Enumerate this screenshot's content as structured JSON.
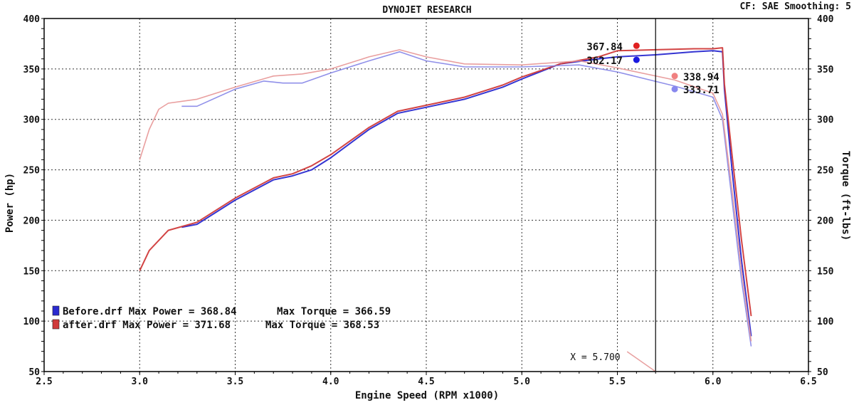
{
  "header": {
    "title": "DYNOJET RESEARCH",
    "cf_text": "CF: SAE  Smoothing: 5"
  },
  "chart_data": {
    "type": "line",
    "title": "DYNOJET RESEARCH",
    "xlabel": "Engine Speed (RPM x1000)",
    "ylabel": "Power (hp)",
    "y2label": "Torque (ft-lbs)",
    "xlim": [
      2.5,
      6.5
    ],
    "ylim": [
      50,
      400
    ],
    "y2lim": [
      50,
      400
    ],
    "x_ticks": [
      "2.5",
      "3.0",
      "3.5",
      "4.0",
      "4.5",
      "5.0",
      "5.5",
      "6.0",
      "6.5"
    ],
    "y_ticks": [
      "50",
      "100",
      "150",
      "200",
      "250",
      "300",
      "350",
      "400"
    ],
    "y2_ticks": [
      "50",
      "100",
      "150",
      "200",
      "250",
      "300",
      "350",
      "400"
    ],
    "grid": true,
    "grid_style": "dotted",
    "cursor": {
      "x": 5.7,
      "label": "X = 5.700"
    },
    "series": [
      {
        "name": "Before.drf",
        "kind": "power",
        "color": "#2a2ad0",
        "x": [
          3.22,
          3.3,
          3.5,
          3.7,
          3.8,
          3.9,
          4.0,
          4.2,
          4.35,
          4.5,
          4.7,
          4.9,
          5.0,
          5.2,
          5.4,
          5.5,
          5.7,
          5.9,
          6.0,
          6.05,
          6.06,
          6.1,
          6.15,
          6.2
        ],
        "y": [
          193,
          196,
          220,
          240,
          244,
          250,
          262,
          290,
          306,
          312,
          320,
          332,
          340,
          355,
          360,
          362,
          364,
          367,
          368,
          367,
          330,
          250,
          160,
          85
        ]
      },
      {
        "name": "after.drf",
        "kind": "power",
        "color": "#d03a3a",
        "x": [
          3.0,
          3.05,
          3.15,
          3.3,
          3.5,
          3.7,
          3.8,
          3.9,
          4.0,
          4.2,
          4.35,
          4.5,
          4.7,
          4.9,
          5.0,
          5.2,
          5.4,
          5.5,
          5.7,
          5.9,
          6.0,
          6.05,
          6.06,
          6.1,
          6.15,
          6.2
        ],
        "y": [
          150,
          170,
          190,
          198,
          222,
          242,
          246,
          254,
          265,
          292,
          308,
          314,
          322,
          334,
          342,
          355,
          362,
          368,
          369,
          370,
          370,
          371,
          335,
          265,
          180,
          105
        ]
      },
      {
        "name": "Before.drf",
        "kind": "torque",
        "color": "#8a8ae8",
        "x": [
          3.22,
          3.3,
          3.5,
          3.65,
          3.75,
          3.85,
          4.0,
          4.2,
          4.36,
          4.5,
          4.7,
          5.0,
          5.3,
          5.5,
          5.8,
          6.0,
          6.05,
          6.1,
          6.15,
          6.2
        ],
        "y": [
          313,
          313,
          330,
          338,
          336,
          336,
          346,
          358,
          367,
          358,
          352,
          352,
          354,
          347,
          333,
          322,
          300,
          220,
          140,
          75
        ]
      },
      {
        "name": "after.drf",
        "kind": "torque",
        "color": "#e89a9a",
        "x": [
          3.0,
          3.05,
          3.1,
          3.15,
          3.3,
          3.5,
          3.7,
          3.85,
          4.0,
          4.2,
          4.36,
          4.5,
          4.7,
          5.0,
          5.3,
          5.5,
          5.8,
          6.0,
          6.05,
          6.1,
          6.15,
          6.2
        ],
        "y": [
          260,
          290,
          310,
          316,
          320,
          332,
          343,
          345,
          350,
          362,
          369,
          362,
          355,
          354,
          358,
          351,
          339,
          326,
          305,
          230,
          150,
          80
        ]
      }
    ],
    "markers": [
      {
        "label": "367.84",
        "x": 5.6,
        "y": 373,
        "color": "#e02020"
      },
      {
        "label": "362.17",
        "x": 5.6,
        "y": 359,
        "color": "#1a1ae0"
      },
      {
        "label": "338.94",
        "x": 5.8,
        "y": 343,
        "color": "#f08080"
      },
      {
        "label": "333.71",
        "x": 5.8,
        "y": 330,
        "color": "#8888ee"
      }
    ],
    "legend": [
      {
        "text": "Before.drf Max Power = 368.84",
        "torque_text": "Max Torque = 366.59",
        "color": "#2a2ad0"
      },
      {
        "text": "after.drf Max Power = 371.68",
        "torque_text": "Max Torque = 368.53",
        "color": "#d03a3a"
      }
    ]
  }
}
